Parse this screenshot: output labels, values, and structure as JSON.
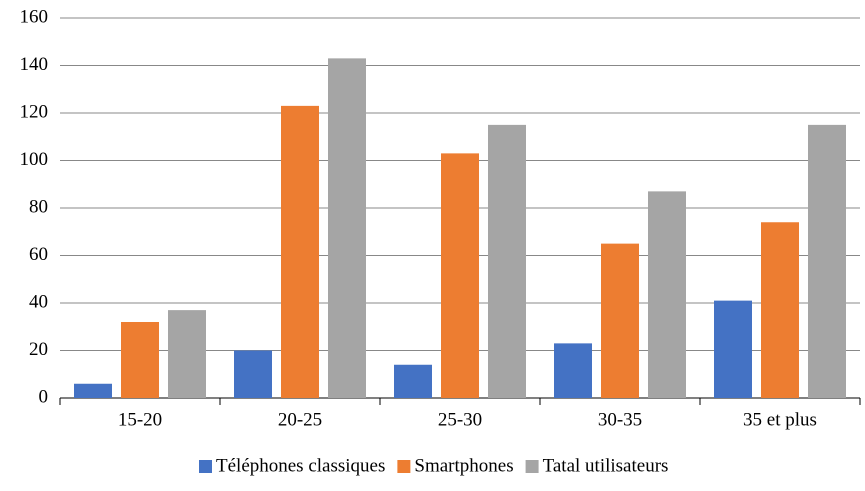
{
  "chart_data": {
    "type": "bar",
    "categories": [
      "15-20",
      "20-25",
      "25-30",
      "30-35",
      "35 et plus"
    ],
    "series": [
      {
        "name": "Téléphones classiques",
        "color": "#4472c4",
        "values": [
          6,
          20,
          14,
          23,
          41
        ]
      },
      {
        "name": "Smartphones",
        "color": "#ed7d31",
        "values": [
          32,
          123,
          103,
          65,
          74
        ]
      },
      {
        "name": "Tatal utilisateurs",
        "color": "#a5a5a5",
        "values": [
          37,
          143,
          115,
          87,
          115
        ]
      }
    ],
    "ylim": [
      0,
      160
    ],
    "yticks": [
      0,
      20,
      40,
      60,
      80,
      100,
      120,
      140,
      160
    ],
    "grid": true,
    "legend": "bottom"
  }
}
